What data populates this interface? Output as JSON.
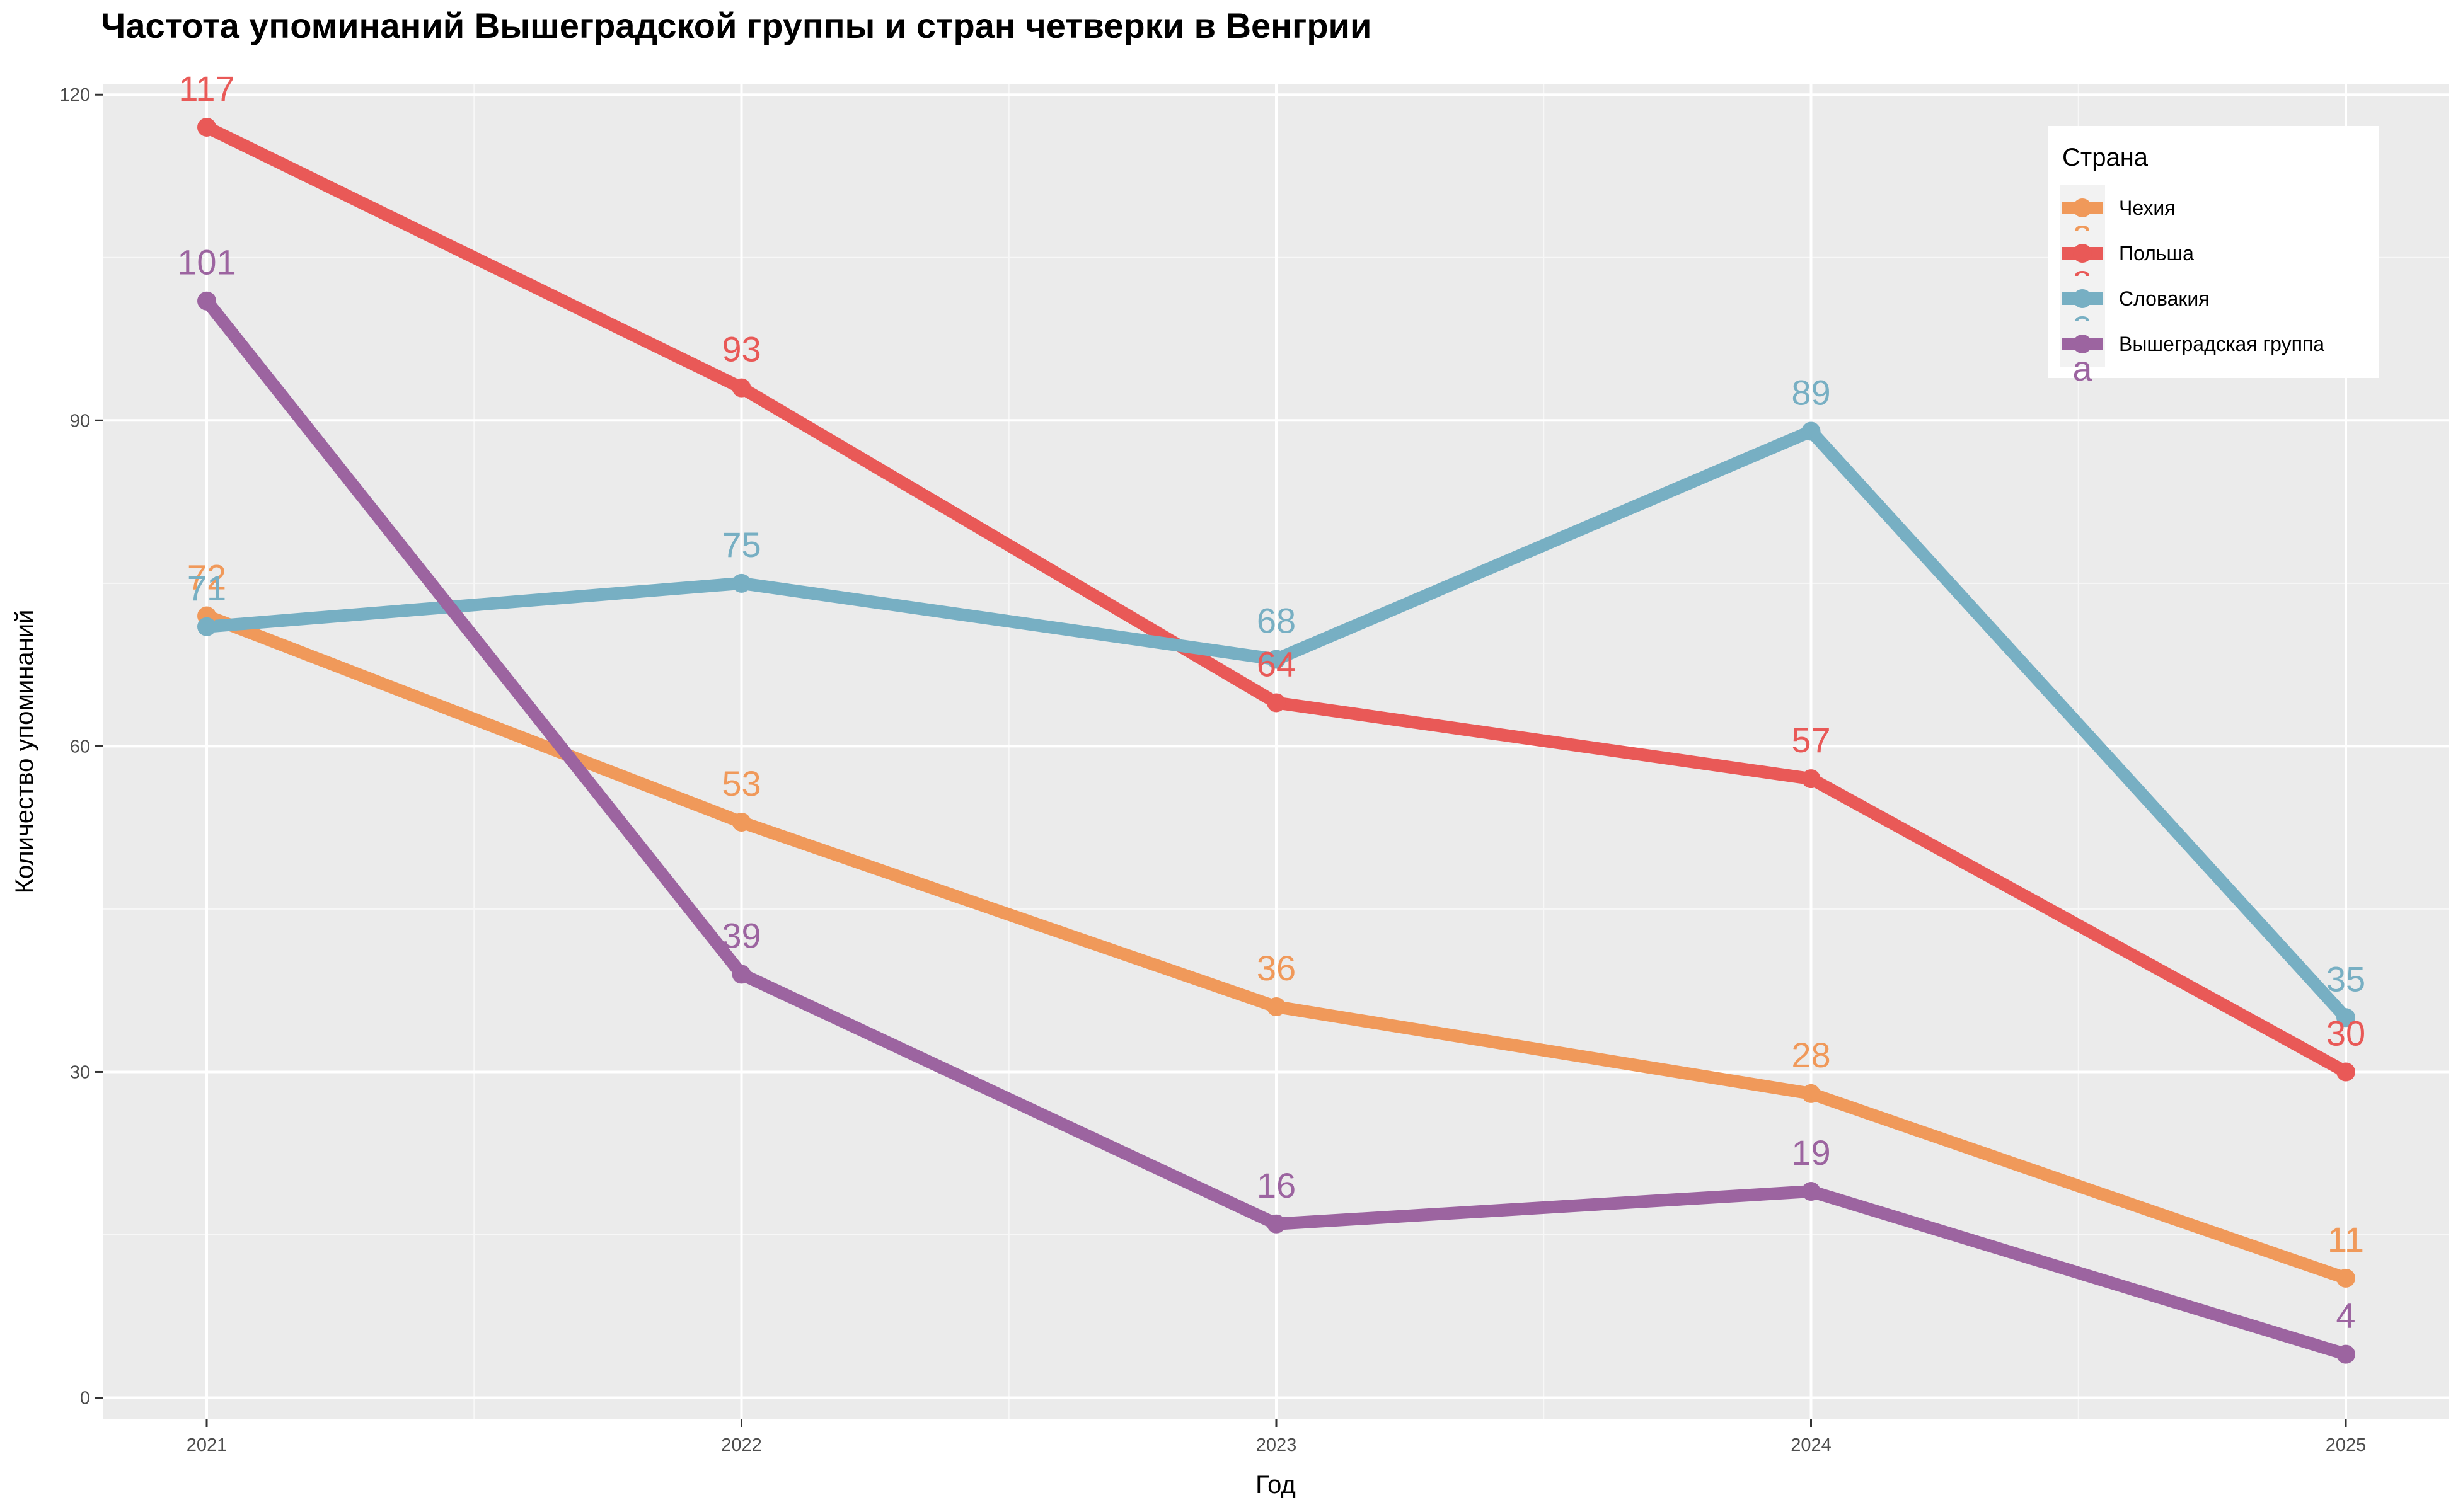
{
  "chart_data": {
    "type": "line",
    "title": "Частота упоминаний Вышеградской группы и стран четверки в Венгрии",
    "xlabel": "Год",
    "ylabel": "Количество упоминаний",
    "x": [
      "2021",
      "2022",
      "2023",
      "2024",
      "2025"
    ],
    "ylim": [
      -2,
      121
    ],
    "yticks": [
      0,
      30,
      60,
      90,
      120
    ],
    "grid": true,
    "legend": {
      "title": "Страна",
      "position": "top-right",
      "key_glyph_text": "a"
    },
    "series": [
      {
        "name": "Чехия",
        "color": "#F0995A",
        "values": [
          72,
          53,
          36,
          28,
          11
        ]
      },
      {
        "name": "Польша",
        "color": "#E95957",
        "values": [
          117,
          93,
          64,
          57,
          30
        ]
      },
      {
        "name": "Словакия",
        "color": "#77AFC3",
        "values": [
          71,
          75,
          68,
          89,
          35
        ]
      },
      {
        "name": "Вышеградская группа",
        "color": "#9C64A0",
        "values": [
          101,
          39,
          16,
          19,
          4
        ]
      }
    ]
  }
}
